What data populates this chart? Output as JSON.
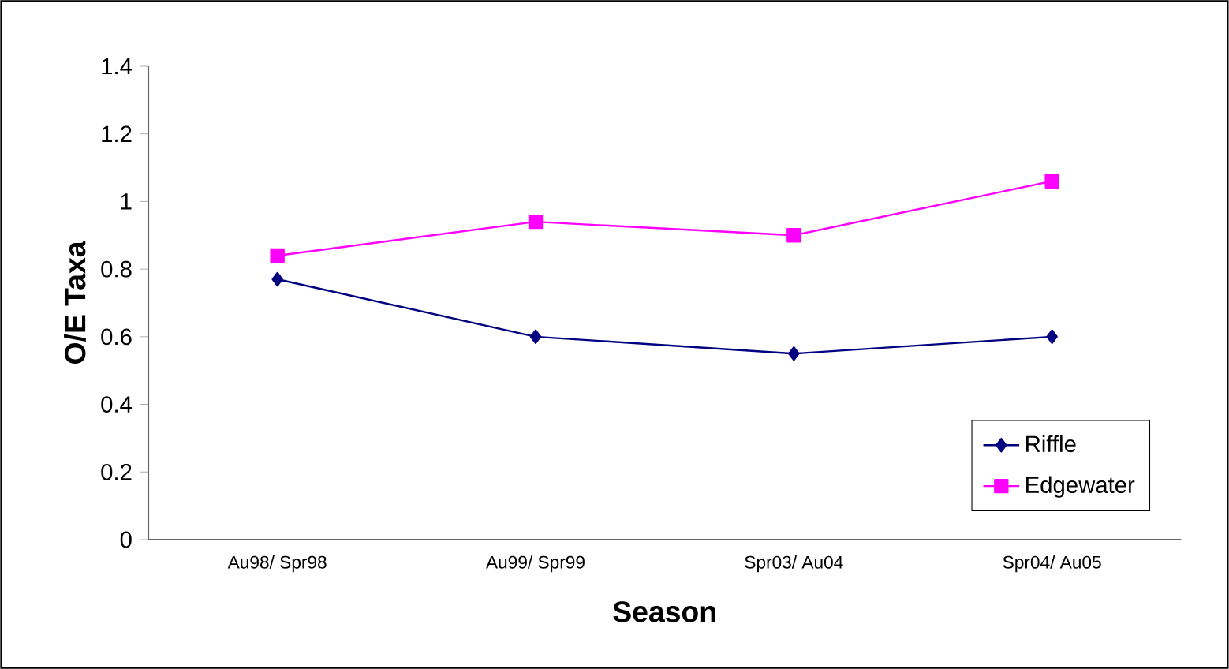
{
  "chart_data": {
    "type": "line",
    "xlabel": "Season",
    "ylabel": "O/E Taxa",
    "categories": [
      "Au98/ Spr98",
      "Au99/ Spr99",
      "Spr03/ Au04",
      "Spr04/ Au05"
    ],
    "series": [
      {
        "name": "Riffle",
        "color": "#000080",
        "marker": "diamond",
        "values": [
          0.77,
          0.6,
          0.55,
          0.6
        ]
      },
      {
        "name": "Edgewater",
        "color": "#ff00ff",
        "marker": "square",
        "values": [
          0.84,
          0.94,
          0.9,
          1.06
        ]
      }
    ],
    "ylim": [
      0,
      1.4
    ],
    "yticks": [
      0,
      0.2,
      0.4,
      0.6,
      0.8,
      1,
      1.2,
      1.4
    ],
    "grid": false,
    "legend": "bottom right",
    "line_style": "solid"
  }
}
